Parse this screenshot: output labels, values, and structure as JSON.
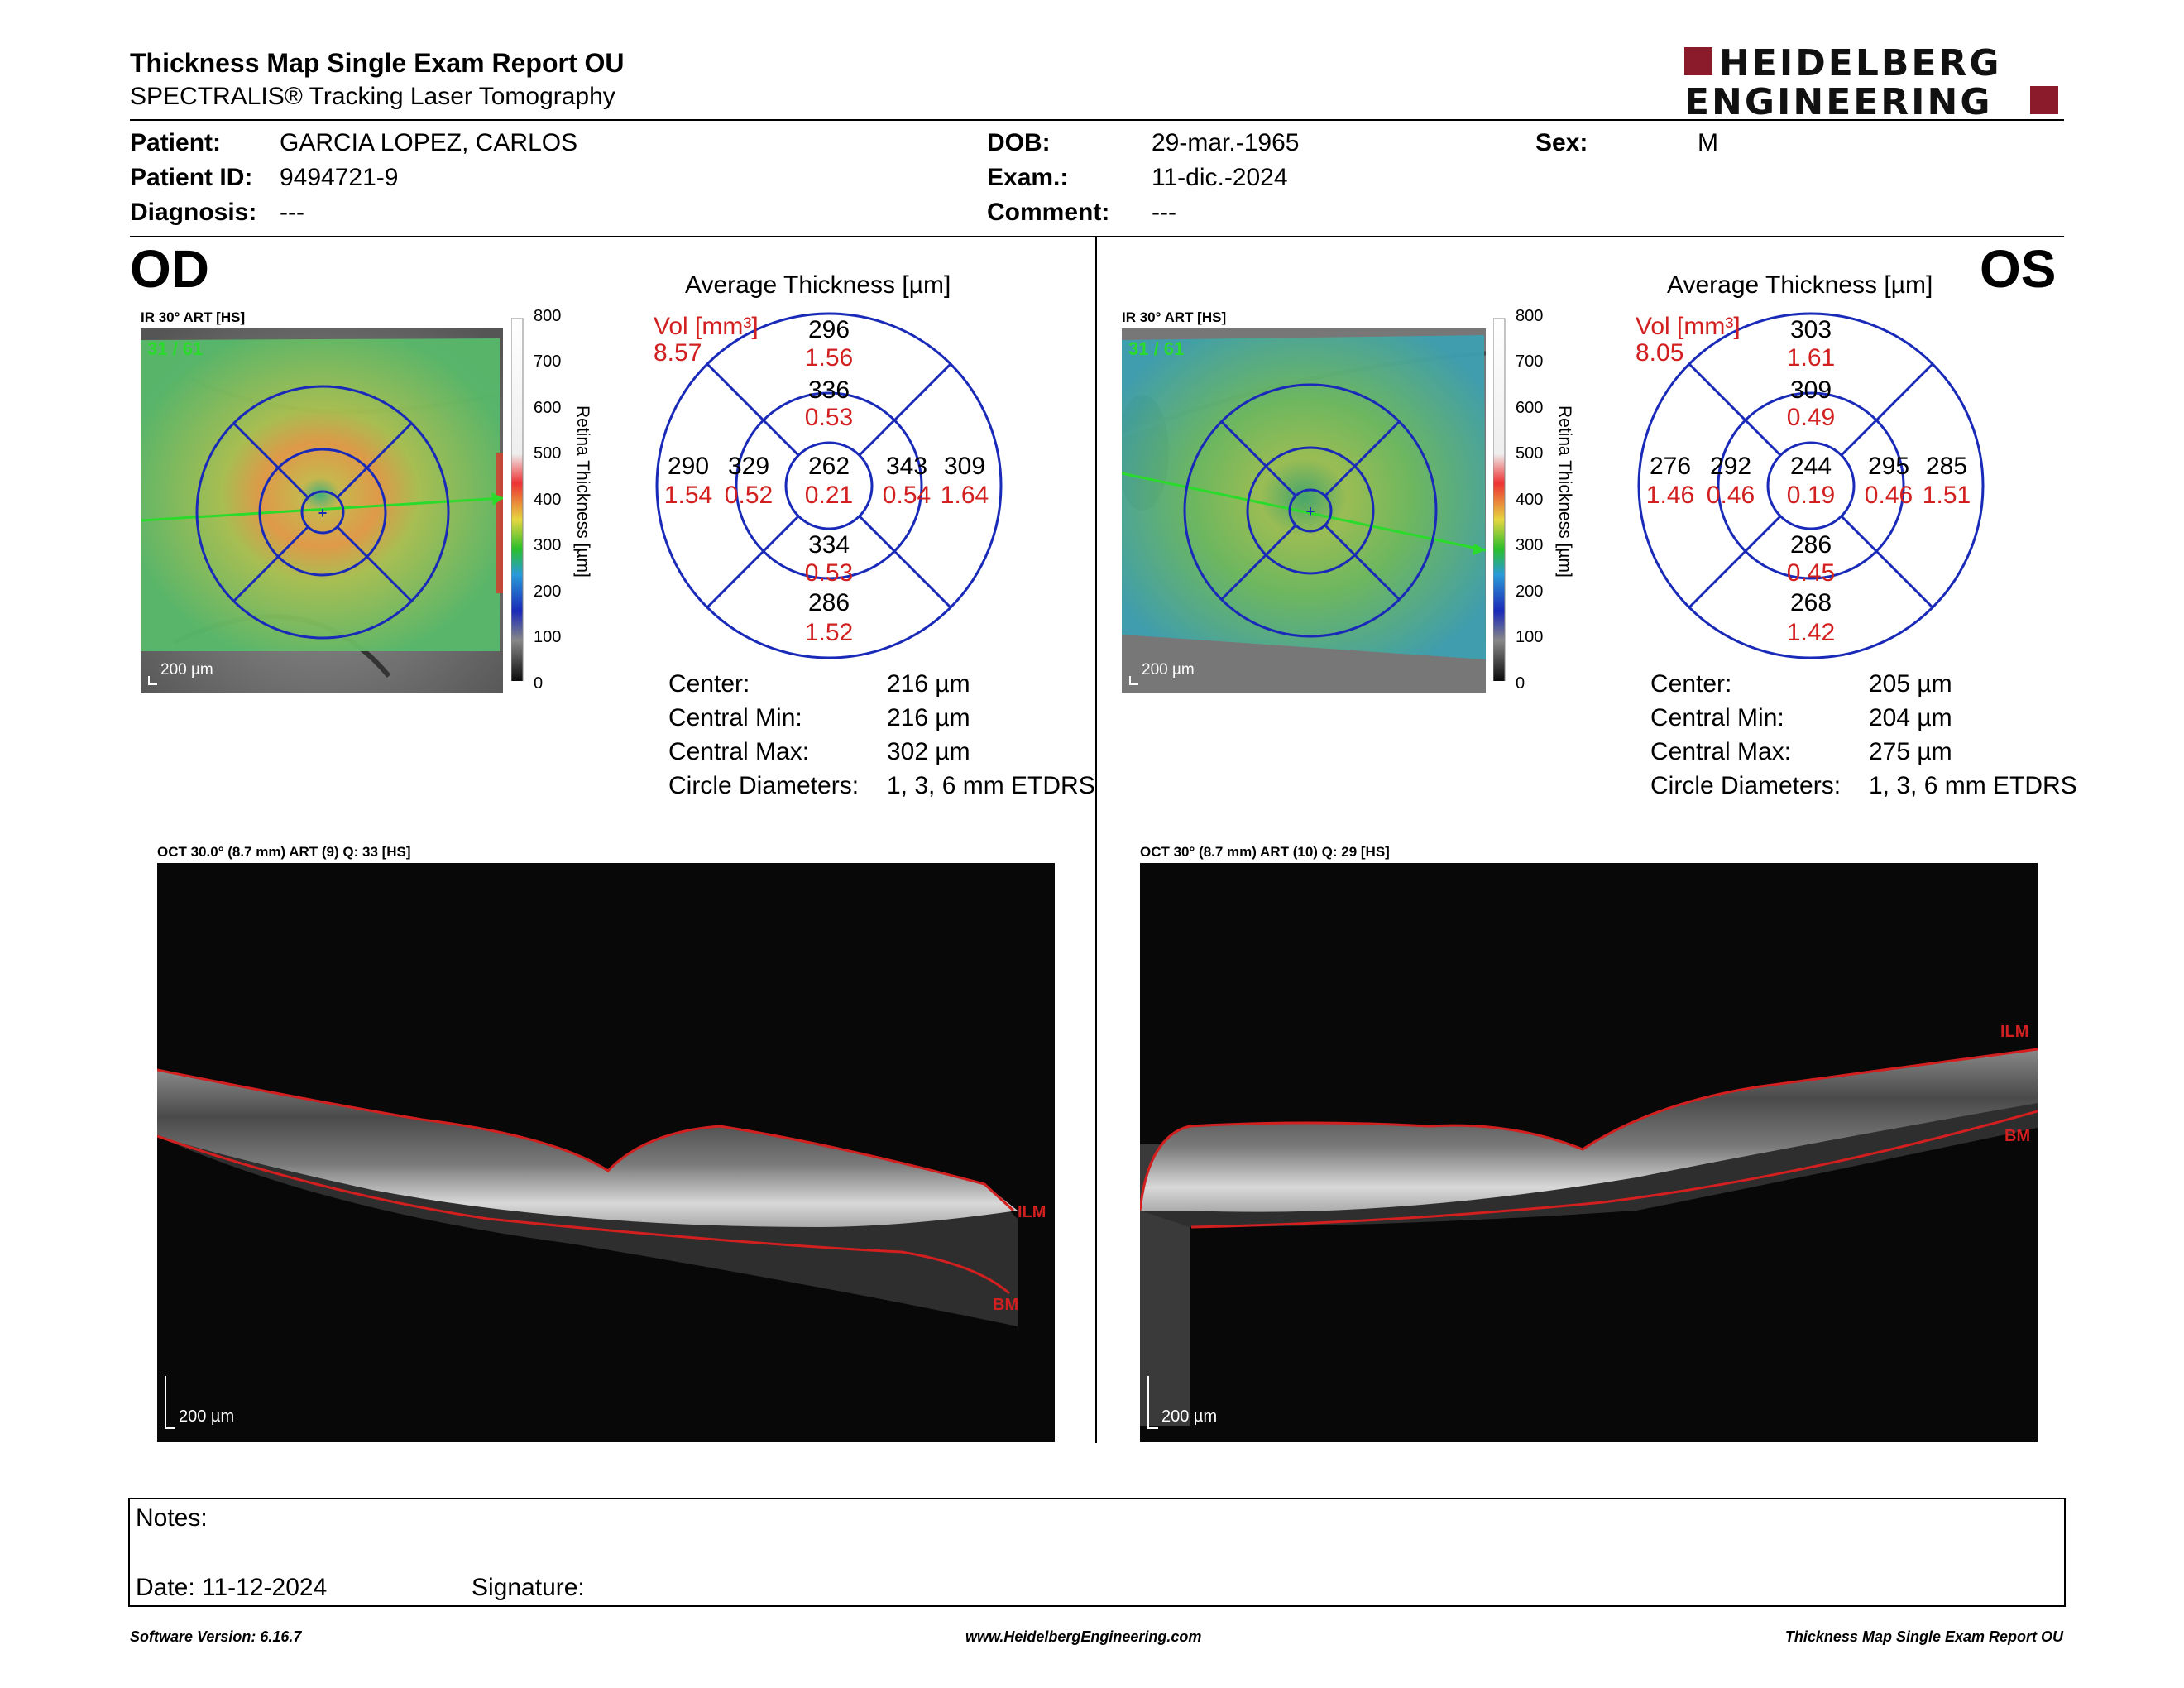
{
  "header": {
    "title": "Thickness Map Single Exam Report OU",
    "subtitle": "SPECTRALIS® Tracking Laser Tomography",
    "logo_line1": "HEIDELBERG",
    "logo_line2": "ENGINEERING",
    "brand_color": "#8b1a2b"
  },
  "patient": {
    "patient_label": "Patient:",
    "patient_value": "GARCIA LOPEZ, CARLOS",
    "id_label": "Patient ID:",
    "id_value": "9494721-9",
    "diagnosis_label": "Diagnosis:",
    "diagnosis_value": "---",
    "dob_label": "DOB:",
    "dob_value": "29-mar.-1965",
    "exam_label": "Exam.:",
    "exam_value": "11-dic.-2024",
    "comment_label": "Comment:",
    "comment_value": "---",
    "sex_label": "Sex:",
    "sex_value": "M"
  },
  "colorbar": {
    "ticks": [
      "800",
      "700",
      "600",
      "500",
      "400",
      "300",
      "200",
      "100",
      "0"
    ],
    "axis_label": "Retina Thickness [µm]"
  },
  "od": {
    "eye": "OD",
    "fundus_label": "IR 30° ART [HS]",
    "frame_count": "31 / 61",
    "scale": "200 µm",
    "etdrs_title": "Average Thickness [µm]",
    "vol_label": "Vol [mm³]",
    "vol_value": "8.57",
    "sectors": {
      "center": {
        "t": "262",
        "v": "0.21"
      },
      "inner_sup": {
        "t": "336",
        "v": "0.53"
      },
      "inner_inf": {
        "t": "334",
        "v": "0.53"
      },
      "inner_left": {
        "t": "329",
        "v": "0.52"
      },
      "inner_right": {
        "t": "343",
        "v": "0.54"
      },
      "outer_sup": {
        "t": "296",
        "v": "1.56"
      },
      "outer_inf": {
        "t": "286",
        "v": "1.52"
      },
      "outer_left": {
        "t": "290",
        "v": "1.54"
      },
      "outer_right": {
        "t": "309",
        "v": "1.64"
      }
    },
    "stats": {
      "center_label": "Center:",
      "center_value": "216 µm",
      "min_label": "Central Min:",
      "min_value": "216 µm",
      "max_label": "Central Max:",
      "max_value": "302 µm",
      "diam_label": "Circle Diameters:",
      "diam_value": "1, 3, 6 mm ETDRS"
    },
    "oct_label": "OCT 30.0° (8.7 mm) ART (9) Q: 33 [HS]",
    "oct_scale": "200 µm",
    "ilm": "ILM",
    "bm": "BM"
  },
  "os": {
    "eye": "OS",
    "fundus_label": "IR 30° ART [HS]",
    "frame_count": "31 / 61",
    "scale": "200 µm",
    "etdrs_title": "Average Thickness [µm]",
    "vol_label": "Vol [mm³]",
    "vol_value": "8.05",
    "sectors": {
      "center": {
        "t": "244",
        "v": "0.19"
      },
      "inner_sup": {
        "t": "309",
        "v": "0.49"
      },
      "inner_inf": {
        "t": "286",
        "v": "0.45"
      },
      "inner_left": {
        "t": "292",
        "v": "0.46"
      },
      "inner_right": {
        "t": "295",
        "v": "0.46"
      },
      "outer_sup": {
        "t": "303",
        "v": "1.61"
      },
      "outer_inf": {
        "t": "268",
        "v": "1.42"
      },
      "outer_left": {
        "t": "276",
        "v": "1.46"
      },
      "outer_right": {
        "t": "285",
        "v": "1.51"
      }
    },
    "stats": {
      "center_label": "Center:",
      "center_value": "205 µm",
      "min_label": "Central Min:",
      "min_value": "204 µm",
      "max_label": "Central Max:",
      "max_value": "275 µm",
      "diam_label": "Circle Diameters:",
      "diam_value": "1, 3, 6 mm ETDRS"
    },
    "oct_label": "OCT 30° (8.7 mm) ART (10) Q: 29 [HS]",
    "oct_scale": "200 µm",
    "ilm": "ILM",
    "bm": "BM"
  },
  "notes": {
    "notes_label": "Notes:",
    "date_label": "Date: 11-12-2024",
    "signature_label": "Signature:"
  },
  "footer": {
    "software": "Software Version: 6.16.7",
    "website": "www.HeidelbergEngineering.com",
    "report": "Thickness Map Single Exam Report OU"
  }
}
